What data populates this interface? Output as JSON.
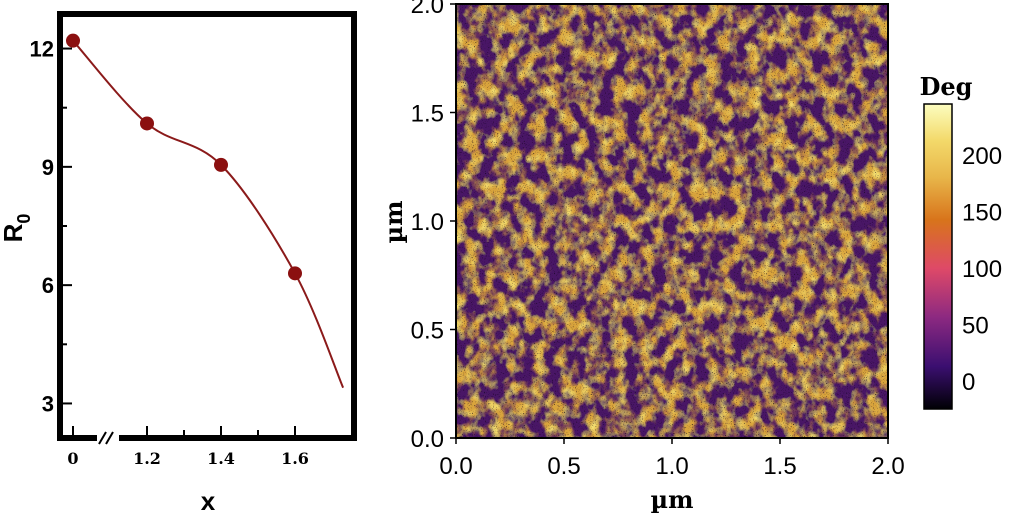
{
  "chart_data": [
    {
      "type": "line",
      "series": [
        {
          "name": "R0",
          "x": [
            0,
            1.2,
            1.4,
            1.6
          ],
          "y": [
            12.2,
            10.1,
            9.05,
            6.3
          ]
        }
      ],
      "curve_end": {
        "x": 1.73,
        "y": 3.4
      },
      "axis_break": "//",
      "xticks": [
        "0",
        "1.2",
        "1.4",
        "1.6"
      ],
      "yticks": [
        "3",
        "6",
        "9",
        "12"
      ],
      "xlabel": "x",
      "ylabel": "R",
      "ylabel_sub": "0",
      "ylim": [
        2.2,
        12.8
      ],
      "colors": {
        "line": "#8b1a1a",
        "marker": "#8b1010"
      }
    },
    {
      "type": "heatmap",
      "xlim": [
        0.0,
        2.0
      ],
      "ylim": [
        0.0,
        2.0
      ],
      "xticks": [
        "0.0",
        "0.5",
        "1.0",
        "1.5",
        "2.0"
      ],
      "yticks": [
        "0.0",
        "0.5",
        "1.0",
        "1.5",
        "2.0"
      ],
      "xlabel": "µm",
      "ylabel": "µm",
      "colorbar": {
        "title": "Deg",
        "ticks": [
          "0",
          "50",
          "100",
          "150",
          "200"
        ],
        "range": [
          -25,
          245
        ],
        "stops": [
          "#000004",
          "#3b0f70",
          "#8c2981",
          "#de4968",
          "#d8741b",
          "#e8b64a",
          "#f3d96a",
          "#fcfdbf"
        ]
      },
      "dominant_value_range": [
        150,
        205
      ]
    }
  ]
}
